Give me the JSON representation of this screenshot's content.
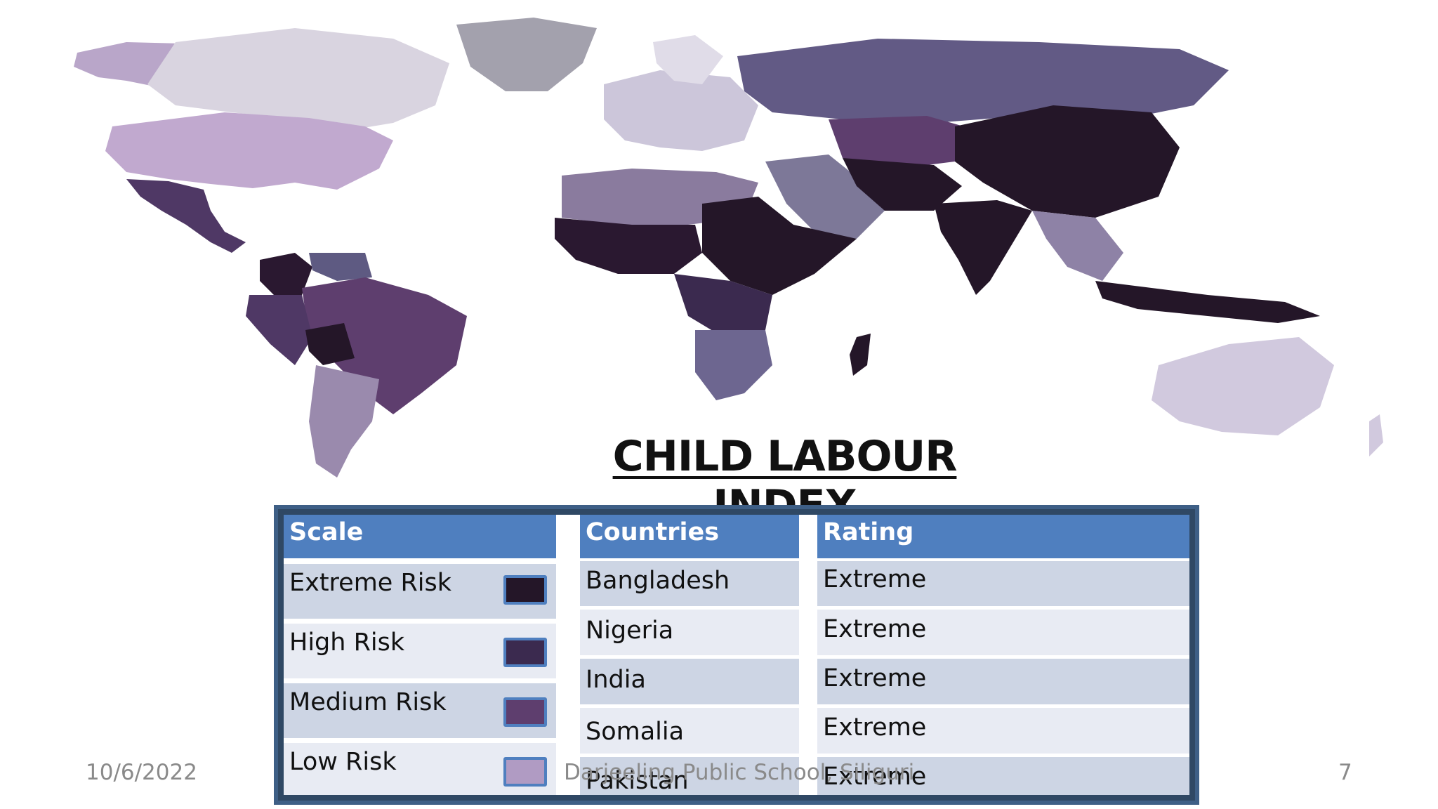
{
  "title": "CHILD LABOUR INDEX",
  "colors": {
    "extreme": "#241628",
    "high": "#3b2a4f",
    "medium": "#5e3e6e",
    "low": "#b09bc3",
    "header": "#4f7fbf",
    "frame": "#3e5f86"
  },
  "table": {
    "headers": {
      "scale": "Scale",
      "countries": "Countries",
      "rating": "Rating"
    },
    "scale": [
      {
        "label": "Extreme Risk",
        "color": "#241628"
      },
      {
        "label": "High Risk",
        "color": "#3b2a4f"
      },
      {
        "label": "Medium Risk",
        "color": "#5e3e6e"
      },
      {
        "label": "Low Risk",
        "color": "#b09bc3"
      }
    ],
    "countries": [
      "Bangladesh",
      "Nigeria",
      "India",
      "Somalia",
      "Pakistan"
    ],
    "ratings": [
      "Extreme",
      "Extreme",
      "Extreme",
      "Extreme",
      "Extreme"
    ]
  },
  "footer": {
    "date": "10/6/2022",
    "school": "Darjeeling Public School, Siliguri",
    "page": "7"
  }
}
